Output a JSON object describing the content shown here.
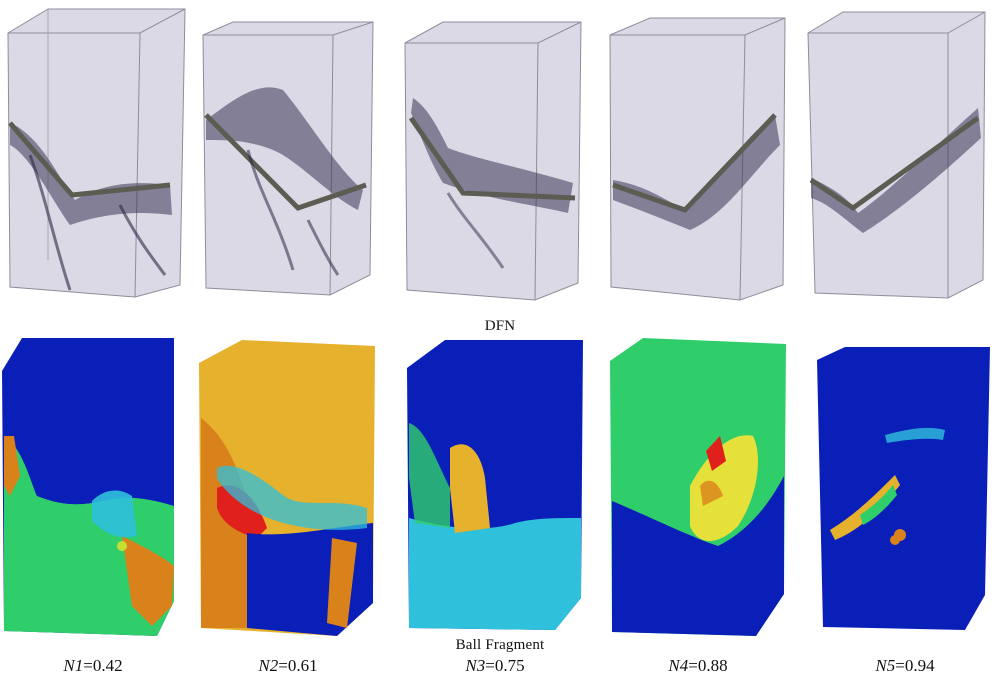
{
  "row_labels": {
    "top": "DFN",
    "bottom": "Ball Fragment"
  },
  "specimens": [
    {
      "var": "N1",
      "value": "=0.42"
    },
    {
      "var": "N2",
      "value": "=0.61"
    },
    {
      "var": "N3",
      "value": "=0.75"
    },
    {
      "var": "N4",
      "value": "=0.88"
    },
    {
      "var": "N5",
      "value": "=0.94"
    }
  ],
  "colors": {
    "dfn_bg": "#d9d6e3",
    "dfn_crack": "#2c2844",
    "dfn_notch": "#6b6b60",
    "frag_blue": "#0a1fb8",
    "frag_yellow": "#e6b12c",
    "frag_orange": "#d9821c",
    "frag_green": "#2fce6a",
    "frag_cyan": "#2fc0dc",
    "frag_red": "#e0201c",
    "frag_lime": "#c6e032"
  }
}
